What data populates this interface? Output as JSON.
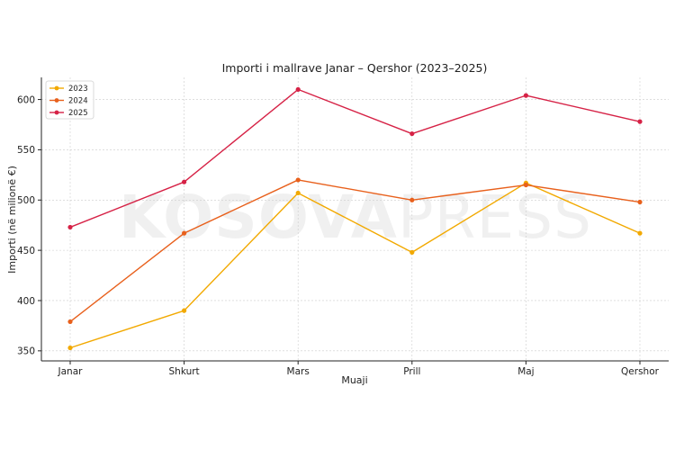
{
  "chart_data": {
    "type": "line",
    "title": "Importi i mallrave Janar – Qershor (2023–2025)",
    "xlabel": "Muaji",
    "ylabel": "Importi (në milionë €)",
    "categories": [
      "Janar",
      "Shkurt",
      "Mars",
      "Prill",
      "Maj",
      "Qershor"
    ],
    "ylim": [
      340,
      622
    ],
    "yticks": [
      350,
      400,
      450,
      500,
      550,
      600
    ],
    "grid": true,
    "legend_position": "top-left",
    "series": [
      {
        "name": "2023",
        "color": "#F2A900",
        "values": [
          353,
          390,
          507,
          448,
          517,
          467
        ]
      },
      {
        "name": "2024",
        "color": "#E8601C",
        "values": [
          379,
          467,
          520,
          500,
          515,
          498
        ]
      },
      {
        "name": "2025",
        "color": "#D62246",
        "values": [
          473,
          518,
          610,
          566,
          604,
          578
        ]
      }
    ]
  },
  "watermark": {
    "text_bold": "KOSOVA",
    "text_light": "PRESS"
  }
}
